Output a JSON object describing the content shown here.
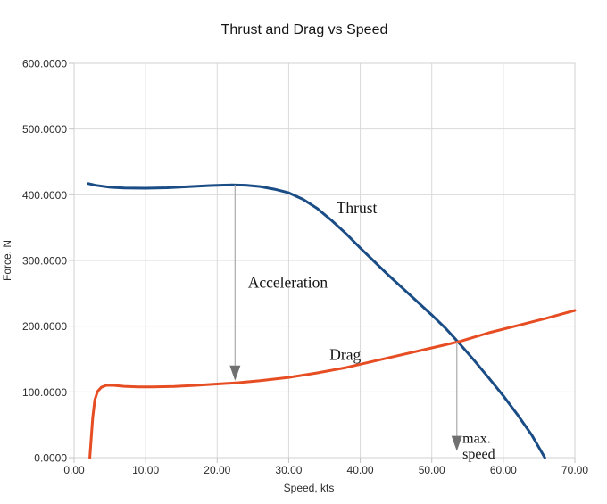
{
  "chart_data": {
    "type": "line",
    "title": "Thrust and Drag vs Speed",
    "xlabel": "Speed, kts",
    "ylabel": "Force, N",
    "xlim": [
      0,
      70
    ],
    "ylim": [
      0,
      600
    ],
    "grid": true,
    "legend": "none (curves labeled inline)",
    "x_ticks": [
      0,
      10,
      20,
      30,
      40,
      50,
      60,
      70
    ],
    "x_tick_labels": [
      "0.00",
      "10.00",
      "20.00",
      "30.00",
      "40.00",
      "50.00",
      "60.00",
      "70.00"
    ],
    "y_ticks": [
      0,
      100,
      200,
      300,
      400,
      500,
      600
    ],
    "y_tick_labels": [
      "0.0000",
      "100.0000",
      "200.0000",
      "300.0000",
      "400.0000",
      "500.0000",
      "600.0000"
    ],
    "series": [
      {
        "name": "Thrust",
        "color": "#1a4c85",
        "width": 3,
        "points": [
          [
            2,
            417
          ],
          [
            3,
            414.5
          ],
          [
            5,
            411.5
          ],
          [
            7,
            410.3
          ],
          [
            10,
            410
          ],
          [
            13,
            410.7
          ],
          [
            16,
            412.3
          ],
          [
            19,
            414
          ],
          [
            22,
            415
          ],
          [
            24,
            414.6
          ],
          [
            26,
            412.5
          ],
          [
            28,
            408.5
          ],
          [
            30,
            403
          ],
          [
            32,
            393
          ],
          [
            34,
            379
          ],
          [
            36,
            361
          ],
          [
            38,
            341
          ],
          [
            40,
            319
          ],
          [
            42,
            298
          ],
          [
            44,
            277
          ],
          [
            46,
            257
          ],
          [
            48,
            237
          ],
          [
            50,
            217
          ],
          [
            52,
            196
          ],
          [
            54,
            172
          ],
          [
            56,
            147
          ],
          [
            58,
            121
          ],
          [
            60,
            94
          ],
          [
            62,
            65
          ],
          [
            64,
            34
          ],
          [
            65.8,
            0
          ]
        ]
      },
      {
        "name": "Drag",
        "color": "#e64d23",
        "width": 3,
        "points": [
          [
            2.2,
            0
          ],
          [
            2.4,
            30
          ],
          [
            2.6,
            60
          ],
          [
            2.9,
            88
          ],
          [
            3.3,
            101
          ],
          [
            3.8,
            107
          ],
          [
            4.5,
            110
          ],
          [
            5.5,
            110
          ],
          [
            7,
            108.5
          ],
          [
            9,
            107.6
          ],
          [
            11,
            107.5
          ],
          [
            14,
            108.3
          ],
          [
            17,
            110
          ],
          [
            20,
            112
          ],
          [
            23,
            114
          ],
          [
            26,
            117
          ],
          [
            30,
            122
          ],
          [
            34,
            129
          ],
          [
            38,
            137
          ],
          [
            42,
            147
          ],
          [
            46,
            157
          ],
          [
            50,
            167
          ],
          [
            54,
            177
          ],
          [
            58,
            190
          ],
          [
            62,
            201
          ],
          [
            66,
            212
          ],
          [
            70,
            224
          ]
        ]
      }
    ],
    "annotations": {
      "arrow_shaft_color": "#b0b0b0",
      "arrow_head_color": "#707070",
      "arrows": [
        {
          "name": "acceleration-arrow",
          "x": 22.5,
          "from": 415,
          "to": 117
        },
        {
          "name": "max-speed-arrow",
          "x": 53.5,
          "from": 176,
          "to": 10
        }
      ],
      "labels": [
        {
          "text": "Thrust",
          "x": 39.5,
          "y": 380,
          "anchor": "middle",
          "size": 17.5
        },
        {
          "text": "Drag",
          "x": 37.9,
          "y": 157,
          "anchor": "middle",
          "size": 17.5
        },
        {
          "text": "Acceleration",
          "x": 24.3,
          "y": 267,
          "anchor": "start",
          "size": 17.5
        },
        {
          "text": "max.",
          "x": 54.3,
          "y": 30,
          "anchor": "start",
          "size": 16
        },
        {
          "text": "speed",
          "x": 54.3,
          "y": 6,
          "anchor": "start",
          "size": 16
        }
      ],
      "crossing_meaning": "Acceleration = gap between Thrust and Drag; max. speed = Thrust/Drag intersection"
    }
  }
}
